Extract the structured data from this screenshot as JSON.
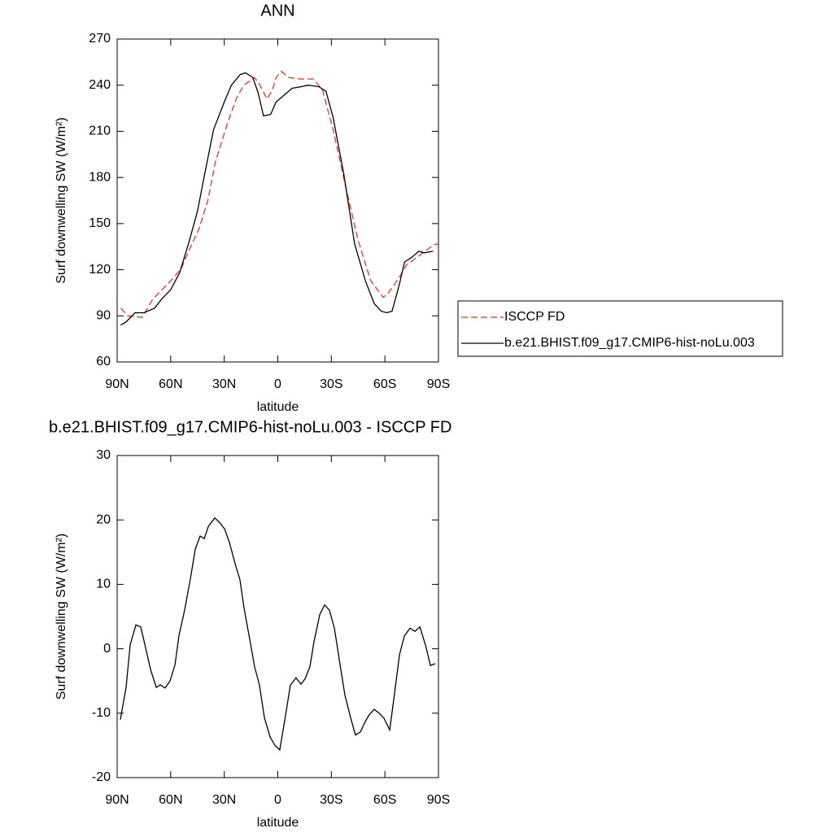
{
  "chart_data": [
    {
      "type": "line",
      "title": "ANN",
      "xlabel": "latitude",
      "ylabel": "Surf downwelling SW (W/m²)",
      "xlim": [
        90,
        -90
      ],
      "xticks": [
        {
          "value": 90,
          "label": "90N"
        },
        {
          "value": 60,
          "label": "60N"
        },
        {
          "value": 30,
          "label": "30N"
        },
        0,
        {
          "value": -30,
          "label": "30S"
        },
        {
          "value": -60,
          "label": "60S"
        },
        {
          "value": -90,
          "label": "90S"
        }
      ],
      "ylim": [
        60,
        270
      ],
      "yticks": [
        60,
        90,
        120,
        150,
        180,
        210,
        240,
        270
      ],
      "legend": "right",
      "series": [
        {
          "name": "ISCCP FD",
          "color": "#e8312f",
          "line_style": "dashed",
          "x": [
            88,
            84,
            76,
            70,
            64,
            59,
            54,
            50,
            44,
            39,
            35,
            28,
            23,
            19,
            13,
            10,
            6,
            3,
            1,
            -2,
            -6,
            -13,
            -20,
            -25,
            -31,
            -38,
            -45,
            -52,
            -59,
            -62,
            -68,
            -72,
            -79,
            -87,
            -90
          ],
          "values": [
            95,
            90,
            89,
            101,
            108,
            114,
            121,
            132,
            147,
            166,
            190,
            216,
            232,
            240,
            245,
            240,
            231,
            237,
            245,
            249,
            245,
            244,
            244,
            237,
            211,
            174,
            139,
            113,
            102,
            105,
            115,
            123,
            129,
            136,
            137
          ]
        },
        {
          "name": "b.e21.BHIST.f09_g17.CMIP6-hist-noLu.003",
          "color": "#000000",
          "line_style": "solid",
          "x": [
            88,
            85,
            80,
            75,
            69,
            65,
            60,
            55,
            50,
            45,
            41,
            36,
            30,
            26,
            21,
            18,
            14,
            11,
            8,
            4,
            1,
            -8,
            -13,
            -17,
            -23,
            -27,
            -31,
            -37,
            -43,
            -49,
            -54,
            -58,
            -61,
            -64,
            -68,
            -71,
            -75,
            -79,
            -82,
            -87
          ],
          "values": [
            84,
            86,
            92,
            92,
            95,
            101,
            107,
            118,
            137,
            158,
            182,
            211,
            229,
            240,
            247,
            248,
            245,
            235,
            220,
            221,
            229,
            238,
            239,
            240,
            239,
            236,
            219,
            182,
            137,
            113,
            98,
            93,
            92,
            93,
            110,
            125,
            128,
            132,
            131,
            132
          ]
        }
      ]
    },
    {
      "type": "line",
      "title": "b.e21.BHIST.f09_g17.CMIP6-hist-noLu.003 - ISCCP FD",
      "xlabel": "latitude",
      "ylabel": "Surf downwelling SW (W/m²)",
      "xlim": [
        90,
        -90
      ],
      "xticks": [
        {
          "value": 90,
          "label": "90N"
        },
        {
          "value": 60,
          "label": "60N"
        },
        {
          "value": 30,
          "label": "30N"
        },
        0,
        {
          "value": -30,
          "label": "30S"
        },
        {
          "value": -60,
          "label": "60S"
        },
        {
          "value": -90,
          "label": "90S"
        }
      ],
      "ylim": [
        -20,
        30
      ],
      "yticks": [
        -20,
        -10,
        0,
        10,
        20,
        30
      ],
      "series": [
        {
          "color": "#000000",
          "line_style": "solid",
          "x": [
            88.2,
            85,
            82.7,
            79.5,
            76.8,
            74.5,
            71.3,
            68.1,
            65.8,
            63.1,
            60.4,
            57.6,
            55.4,
            52.2,
            49,
            46.2,
            43.5,
            41.2,
            38.9,
            35.3,
            32.6,
            29.8,
            27.1,
            23.9,
            21.2,
            18.9,
            16.2,
            13,
            10.3,
            7.5,
            4.3,
            1.6,
            -1.1,
            -4.3,
            -7,
            -10.2,
            -13,
            -15.2,
            -18,
            -20.2,
            -23.5,
            -26.2,
            -28.9,
            -31.7,
            -34.9,
            -37.6,
            -40.8,
            -43.5,
            -46.3,
            -49,
            -51.3,
            -54,
            -56.8,
            -59.5,
            -62.7,
            -65.4,
            -68.2,
            -70.9,
            -74.1,
            -76.8,
            -79.6,
            -82.8,
            -85.5,
            -88.3
          ],
          "values": [
            -11,
            -6,
            0.6,
            3.7,
            3.4,
            0.7,
            -3.2,
            -6,
            -5.6,
            -6.1,
            -5,
            -2.5,
            2,
            6,
            10.8,
            15.5,
            17.5,
            17.1,
            19,
            20.3,
            19.6,
            18.6,
            16.5,
            13.2,
            10.7,
            6.3,
            2.2,
            -2.8,
            -5.6,
            -10.7,
            -13.7,
            -15,
            -15.7,
            -10.4,
            -5.7,
            -4.5,
            -5.5,
            -4.7,
            -2.8,
            1,
            5.3,
            6.8,
            6,
            3.2,
            -2.5,
            -7.2,
            -10.7,
            -13.4,
            -12.9,
            -11.3,
            -10.2,
            -9.4,
            -10,
            -10.8,
            -12.6,
            -6.9,
            -0.9,
            2,
            3.2,
            2.7,
            3.4,
            0.5,
            -2.6,
            -2.3
          ]
        }
      ]
    }
  ]
}
